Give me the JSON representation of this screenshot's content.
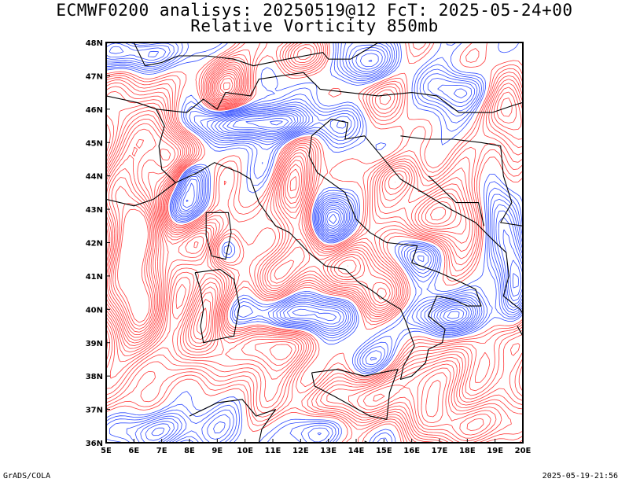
{
  "title": {
    "line1": "ECMWF0200 analisys: 20250519@12 FcT: 2025-05-24+00",
    "line2": "Relative Vorticity 850mb"
  },
  "map": {
    "lon_range": [
      5,
      20
    ],
    "lat_range": [
      36,
      48
    ],
    "lat_labels": [
      "48N",
      "47N",
      "46N",
      "45N",
      "44N",
      "43N",
      "42N",
      "41N",
      "40N",
      "39N",
      "38N",
      "37N",
      "36N"
    ],
    "lon_labels": [
      "5E",
      "6E",
      "7E",
      "8E",
      "9E",
      "10E",
      "11E",
      "12E",
      "13E",
      "14E",
      "15E",
      "16E",
      "17E",
      "18E",
      "19E",
      "20E"
    ],
    "colors": {
      "positive": "#ff3b3b",
      "negative": "#2f4bff",
      "coastline": "#000000",
      "frame": "#000000",
      "background": "#ffffff"
    }
  },
  "footer": {
    "left": "GrADS/COLA",
    "right": "2025-05-19-21:56"
  }
}
